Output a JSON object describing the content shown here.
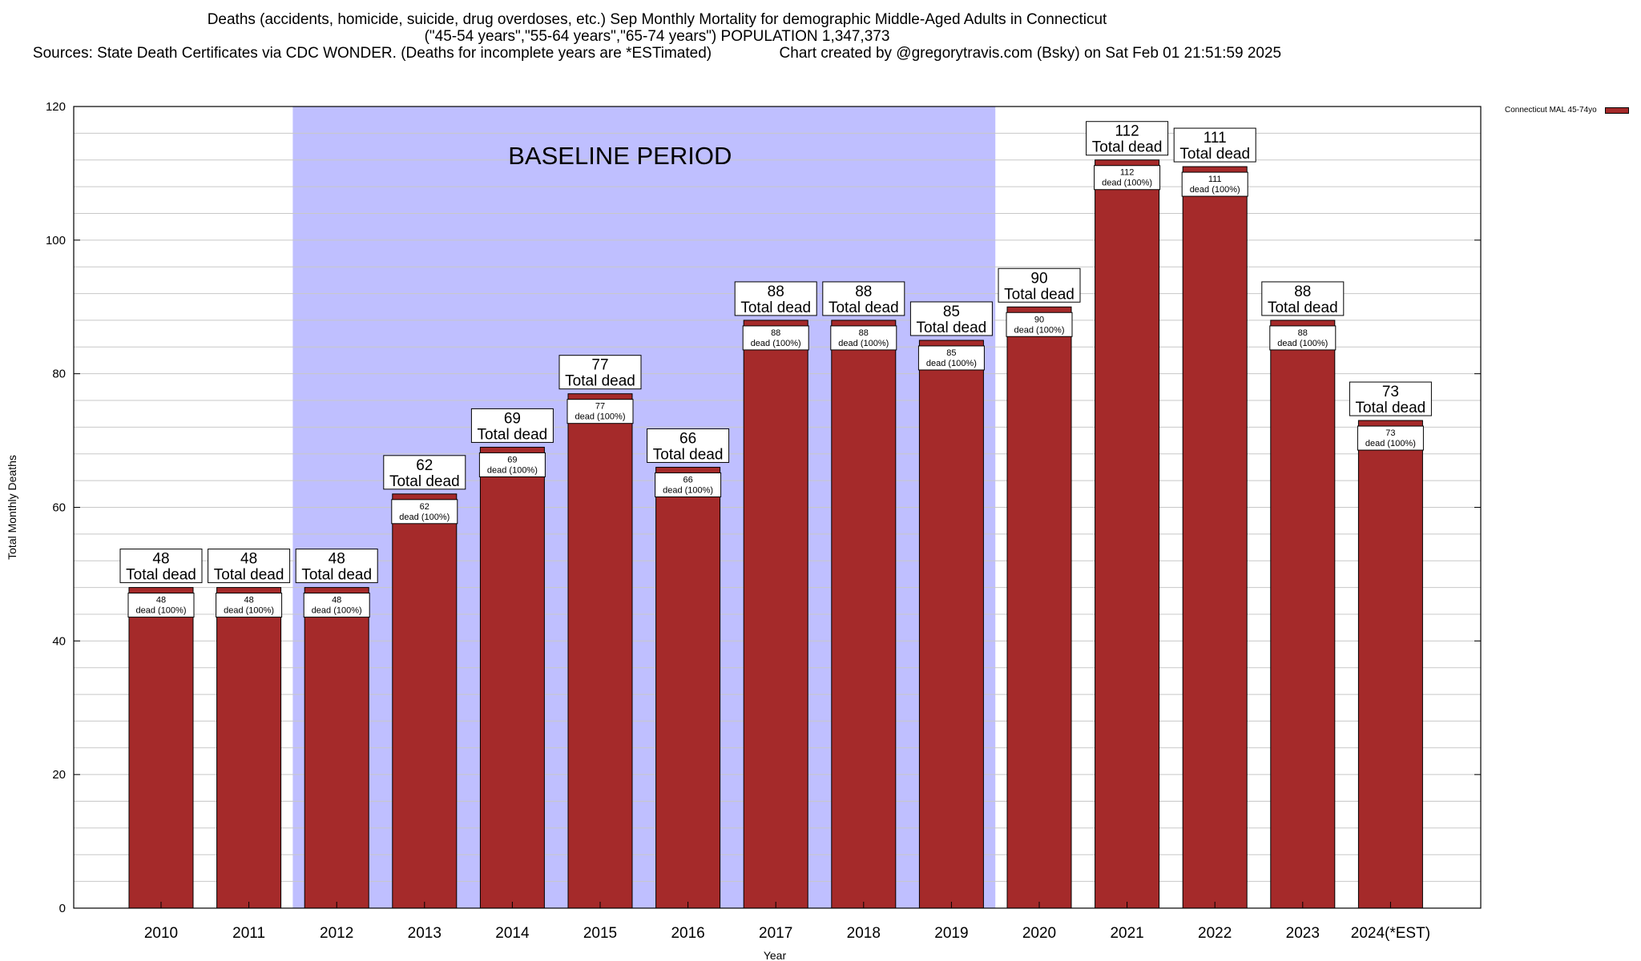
{
  "header": {
    "line1": "Deaths (accidents, homicide, suicide, drug overdoses, etc.) Sep Monthly Mortality for demographic Middle-Aged Adults in Connecticut",
    "line2": "(\"45-54 years\",\"55-64 years\",\"65-74 years\") POPULATION 1,347,373",
    "line3": "Sources: State Death Certificates via CDC WONDER. (Deaths for incomplete years are *ESTimated)                Chart created by @gregorytravis.com (Bsky) on Sat Feb 01 21:51:59 2025"
  },
  "legend": {
    "label": "Connecticut MAL 45-74yo"
  },
  "colors": {
    "bar": "#a52a2a",
    "baseline": "#bfbfff",
    "grid": "#c8c8c8"
  },
  "chart_data": {
    "type": "bar",
    "xlabel": "Year",
    "ylabel": "Total Monthly Deaths",
    "ylim": [
      0,
      120
    ],
    "yticks": [
      0,
      20,
      40,
      60,
      80,
      100,
      120
    ],
    "grid": true,
    "legend_position": "top-right outside",
    "categories": [
      "2010",
      "2011",
      "2012",
      "2013",
      "2014",
      "2015",
      "2016",
      "2017",
      "2018",
      "2019",
      "2020",
      "2021",
      "2022",
      "2023",
      "2024(*EST)"
    ],
    "series": [
      {
        "name": "Connecticut MAL 45-74yo",
        "values": [
          48,
          48,
          48,
          62,
          69,
          77,
          66,
          88,
          88,
          85,
          90,
          112,
          111,
          88,
          73
        ]
      }
    ],
    "total_label": "Total dead",
    "inner_label": "dead (100%)",
    "annotations": [
      {
        "text": "BASELINE PERIOD",
        "from": "2012",
        "to": "2019"
      }
    ]
  }
}
